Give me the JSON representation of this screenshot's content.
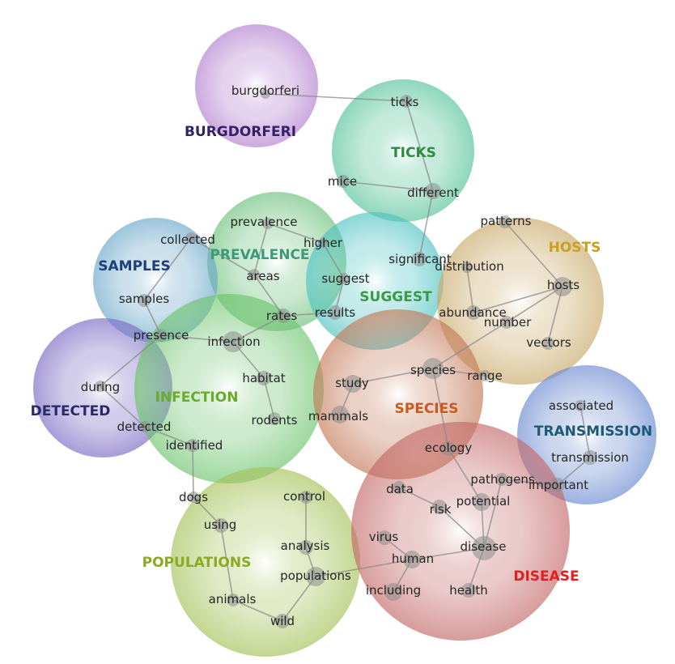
{
  "clusters": [
    {
      "id": "burgdorferi",
      "label": "BURGDORFERI",
      "color": "#b27fcf",
      "label_color": "#332266"
    },
    {
      "id": "ticks",
      "label": "TICKS",
      "color": "#55c29a",
      "label_color": "#2e8b3e"
    },
    {
      "id": "prevalence",
      "label": "PREVALENCE",
      "color": "#6cc07a",
      "label_color": "#3a9a7a"
    },
    {
      "id": "suggest",
      "label": "SUGGEST",
      "color": "#4fc2c2",
      "label_color": "#3a9a4a"
    },
    {
      "id": "hosts",
      "label": "HOSTS",
      "color": "#c9aa6a",
      "label_color": "#c9a024"
    },
    {
      "id": "samples",
      "label": "SAMPLES",
      "color": "#6aa6c9",
      "label_color": "#1d3f7a"
    },
    {
      "id": "detected",
      "label": "DETECTED",
      "color": "#7b6bc4",
      "label_color": "#2a2a6a"
    },
    {
      "id": "infection",
      "label": "INFECTION",
      "color": "#6ec46e",
      "label_color": "#6aaa2a"
    },
    {
      "id": "species",
      "label": "SPECIES",
      "color": "#c47a5a",
      "label_color": "#c85a20"
    },
    {
      "id": "transmission",
      "label": "TRANSMISSION",
      "color": "#6a8ad0",
      "label_color": "#1d5a7a"
    },
    {
      "id": "populations",
      "label": "POPULATIONS",
      "color": "#a6c25a",
      "label_color": "#8aaa22"
    },
    {
      "id": "disease",
      "label": "DISEASE",
      "color": "#c46a6a",
      "label_color": "#e02020"
    }
  ],
  "terms": [
    {
      "id": "burgdorferi",
      "text": "burgdorferi"
    },
    {
      "id": "ticks",
      "text": "ticks"
    },
    {
      "id": "mice",
      "text": "mice"
    },
    {
      "id": "different",
      "text": "different"
    },
    {
      "id": "prevalence",
      "text": "prevalence"
    },
    {
      "id": "higher",
      "text": "higher"
    },
    {
      "id": "collected",
      "text": "collected"
    },
    {
      "id": "areas",
      "text": "areas"
    },
    {
      "id": "significant",
      "text": "significant"
    },
    {
      "id": "distribution",
      "text": "distribution"
    },
    {
      "id": "patterns",
      "text": "patterns"
    },
    {
      "id": "suggest",
      "text": "suggest"
    },
    {
      "id": "samples",
      "text": "samples"
    },
    {
      "id": "results",
      "text": "results"
    },
    {
      "id": "rates",
      "text": "rates"
    },
    {
      "id": "hosts",
      "text": "hosts"
    },
    {
      "id": "abundance",
      "text": "abundance"
    },
    {
      "id": "number",
      "text": "number"
    },
    {
      "id": "presence",
      "text": "presence"
    },
    {
      "id": "infection",
      "text": "infection"
    },
    {
      "id": "vectors",
      "text": "vectors"
    },
    {
      "id": "species",
      "text": "species"
    },
    {
      "id": "range",
      "text": "range"
    },
    {
      "id": "habitat",
      "text": "habitat"
    },
    {
      "id": "study",
      "text": "study"
    },
    {
      "id": "during",
      "text": "during"
    },
    {
      "id": "associated",
      "text": "associated"
    },
    {
      "id": "rodents",
      "text": "rodents"
    },
    {
      "id": "mammals",
      "text": "mammals"
    },
    {
      "id": "detected",
      "text": "detected"
    },
    {
      "id": "identified",
      "text": "identified"
    },
    {
      "id": "ecology",
      "text": "ecology"
    },
    {
      "id": "transmission",
      "text": "transmission"
    },
    {
      "id": "pathogens",
      "text": "pathogens"
    },
    {
      "id": "important",
      "text": "important"
    },
    {
      "id": "data",
      "text": "data"
    },
    {
      "id": "potential",
      "text": "potential"
    },
    {
      "id": "dogs",
      "text": "dogs"
    },
    {
      "id": "control",
      "text": "control"
    },
    {
      "id": "risk",
      "text": "risk"
    },
    {
      "id": "using",
      "text": "using"
    },
    {
      "id": "analysis",
      "text": "analysis"
    },
    {
      "id": "virus",
      "text": "virus"
    },
    {
      "id": "disease",
      "text": "disease"
    },
    {
      "id": "human",
      "text": "human"
    },
    {
      "id": "populations",
      "text": "populations"
    },
    {
      "id": "including",
      "text": "including"
    },
    {
      "id": "health",
      "text": "health"
    },
    {
      "id": "animals",
      "text": "animals"
    },
    {
      "id": "wild",
      "text": "wild"
    }
  ],
  "edges": [
    [
      "burgdorferi",
      "ticks"
    ],
    [
      "ticks",
      "different"
    ],
    [
      "mice",
      "different"
    ],
    [
      "different",
      "significant"
    ],
    [
      "prevalence",
      "higher"
    ],
    [
      "prevalence",
      "areas"
    ],
    [
      "higher",
      "suggest"
    ],
    [
      "collected",
      "areas"
    ],
    [
      "collected",
      "samples"
    ],
    [
      "areas",
      "rates"
    ],
    [
      "suggest",
      "results"
    ],
    [
      "results",
      "rates"
    ],
    [
      "samples",
      "presence"
    ],
    [
      "presence",
      "infection"
    ],
    [
      "presence",
      "during"
    ],
    [
      "infection",
      "rates"
    ],
    [
      "infection",
      "habitat"
    ],
    [
      "habitat",
      "rodents"
    ],
    [
      "during",
      "detected"
    ],
    [
      "detected",
      "identified"
    ],
    [
      "patterns",
      "hosts"
    ],
    [
      "distribution",
      "abundance"
    ],
    [
      "hosts",
      "abundance"
    ],
    [
      "hosts",
      "number"
    ],
    [
      "hosts",
      "vectors"
    ],
    [
      "number",
      "species"
    ],
    [
      "species",
      "range"
    ],
    [
      "species",
      "study"
    ],
    [
      "study",
      "mammals"
    ],
    [
      "species",
      "ecology"
    ],
    [
      "ecology",
      "potential"
    ],
    [
      "potential",
      "disease"
    ],
    [
      "data",
      "risk"
    ],
    [
      "risk",
      "disease"
    ],
    [
      "disease",
      "human"
    ],
    [
      "disease",
      "health"
    ],
    [
      "disease",
      "pathogens"
    ],
    [
      "human",
      "virus"
    ],
    [
      "human",
      "including"
    ],
    [
      "human",
      "populations"
    ],
    [
      "associated",
      "transmission"
    ],
    [
      "transmission",
      "important"
    ],
    [
      "pathogens",
      "important"
    ],
    [
      "identified",
      "dogs"
    ],
    [
      "dogs",
      "using"
    ],
    [
      "using",
      "animals"
    ],
    [
      "animals",
      "wild"
    ],
    [
      "control",
      "analysis"
    ],
    [
      "analysis",
      "populations"
    ],
    [
      "populations",
      "wild"
    ]
  ]
}
